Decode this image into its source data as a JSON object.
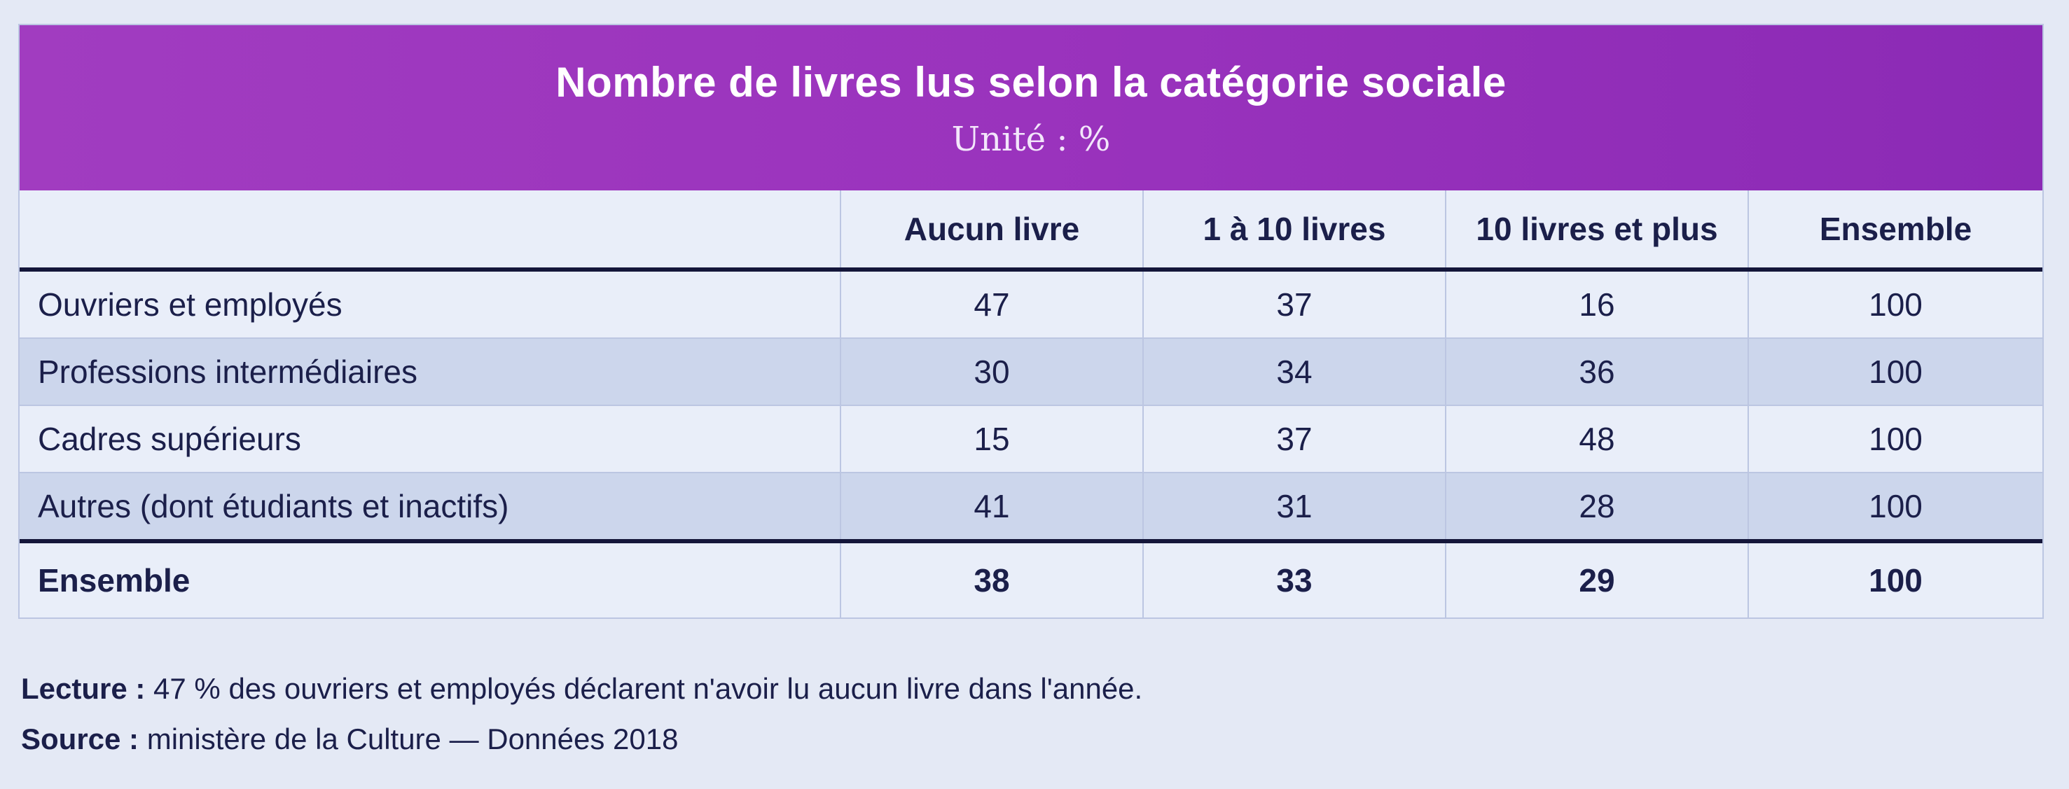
{
  "header": {
    "title": "Nombre de livres lus selon la catégorie sociale",
    "subtitle": "Unité : %"
  },
  "table": {
    "columns": [
      "",
      "Aucun livre",
      "1 à 10 livres",
      "10 livres et plus",
      "Ensemble"
    ],
    "rows": [
      [
        "Ouvriers et employés",
        "47",
        "37",
        "16",
        "100"
      ],
      [
        "Professions intermédiaires",
        "30",
        "34",
        "36",
        "100"
      ],
      [
        "Cadres supérieurs",
        "15",
        "37",
        "48",
        "100"
      ],
      [
        "Autres (dont étudiants et inactifs)",
        "41",
        "31",
        "28",
        "100"
      ]
    ],
    "total": [
      "Ensemble",
      "38",
      "33",
      "29",
      "100"
    ]
  },
  "notes": {
    "lecture_label": "Lecture :",
    "lecture_text": " 47 % des ouvriers et employés déclarent n'avoir lu aucun livre dans l'année.",
    "source_label": "Source :",
    "source_text": " ministère de la Culture — Données 2018"
  },
  "colors": {
    "banner": "#9a33bd",
    "row_alt": "#ccd6ec",
    "rule": "#14163a"
  }
}
